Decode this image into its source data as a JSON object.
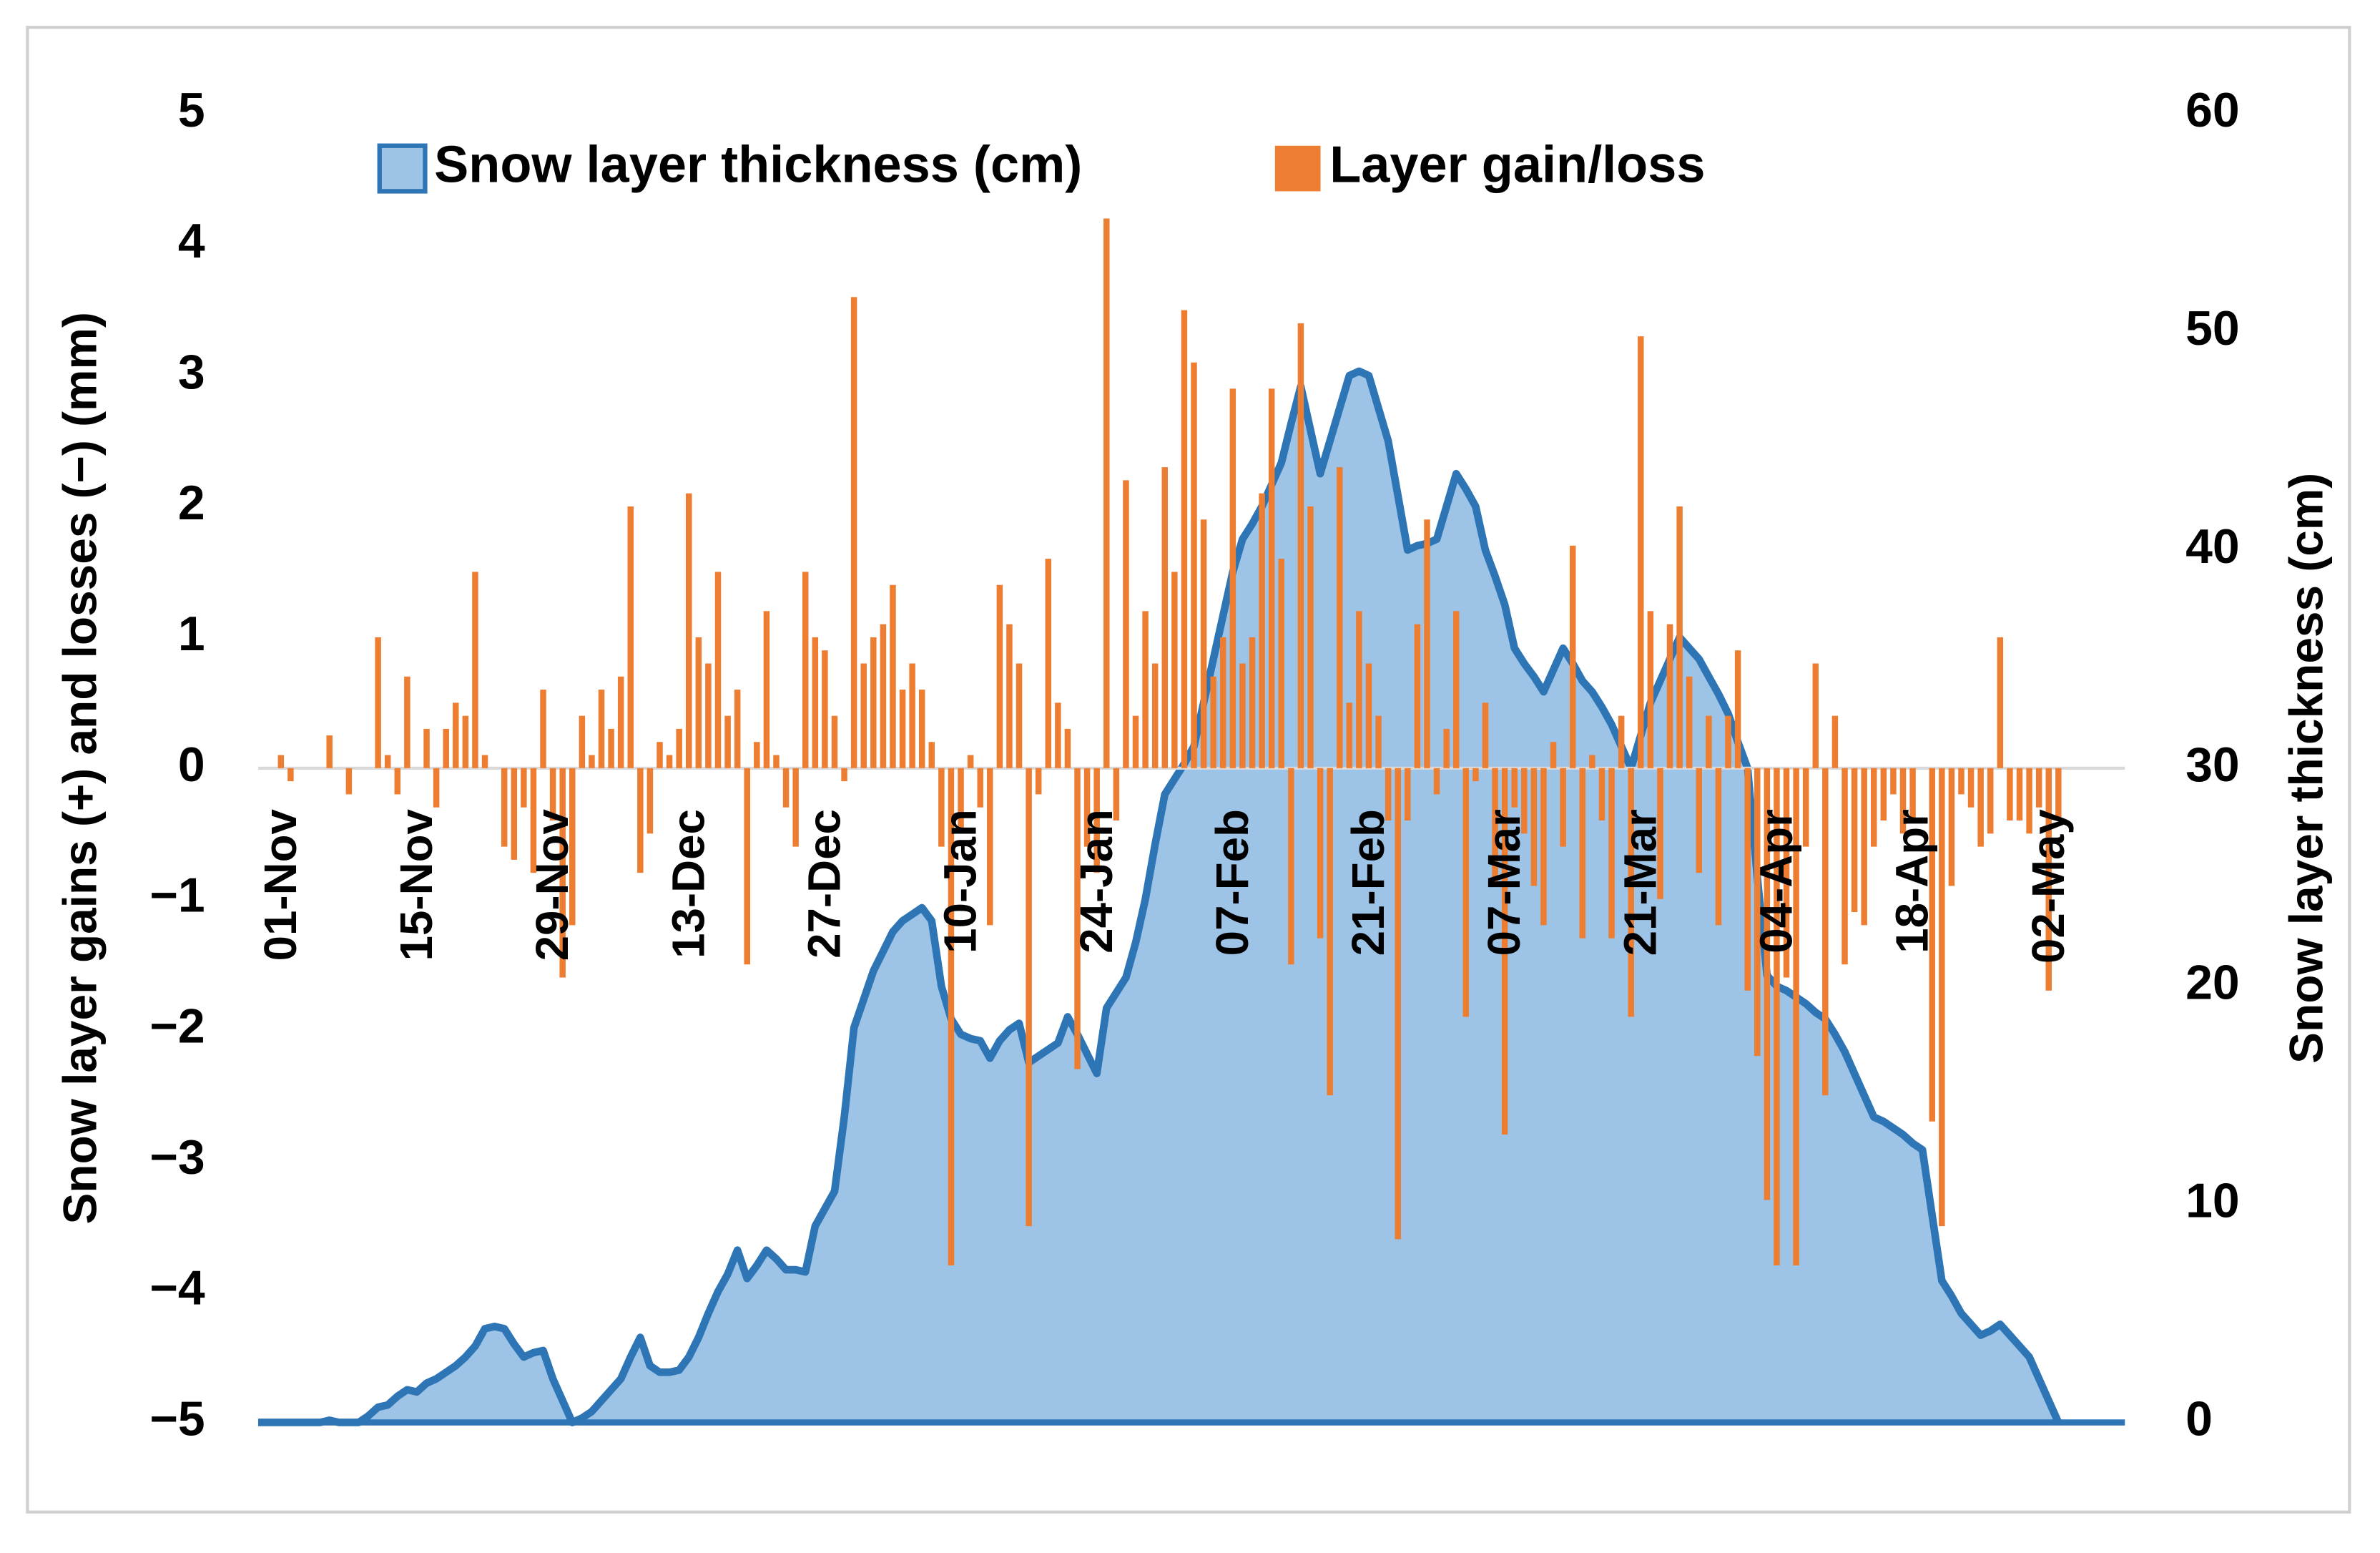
{
  "chart_data": {
    "type": "combo",
    "y_label": "Snow layer gains (+) and losses (−) (mm)",
    "y2_label": "Snow layer thickness (cm)",
    "legend": "top",
    "ylim": [
      -5,
      5
    ],
    "yticks": [
      {
        "value": -5,
        "label": "−5"
      },
      {
        "value": -4,
        "label": "−4"
      },
      {
        "value": -3,
        "label": "−3"
      },
      {
        "value": -2,
        "label": "−2"
      },
      {
        "value": -1,
        "label": "−1"
      },
      0,
      1,
      2,
      3,
      4,
      5
    ],
    "y2lim": [
      0,
      60
    ],
    "y2ticks": [
      0,
      10,
      20,
      30,
      40,
      50,
      60
    ],
    "categories": [
      "01-Nov",
      null,
      null,
      null,
      null,
      null,
      null,
      null,
      null,
      null,
      null,
      null,
      null,
      null,
      "15-Nov",
      null,
      null,
      null,
      null,
      null,
      null,
      null,
      null,
      null,
      null,
      null,
      null,
      null,
      "29-Nov",
      null,
      null,
      null,
      null,
      null,
      null,
      null,
      null,
      null,
      null,
      null,
      null,
      null,
      "13-Dec",
      null,
      null,
      null,
      null,
      null,
      null,
      null,
      null,
      null,
      null,
      null,
      null,
      null,
      "27-Dec",
      null,
      null,
      null,
      null,
      null,
      null,
      null,
      null,
      null,
      null,
      null,
      null,
      null,
      "10-Jan",
      null,
      null,
      null,
      null,
      null,
      null,
      null,
      null,
      null,
      null,
      null,
      null,
      null,
      "24-Jan",
      null,
      null,
      null,
      null,
      null,
      null,
      null,
      null,
      null,
      null,
      null,
      null,
      null,
      "07-Feb",
      null,
      null,
      null,
      null,
      null,
      null,
      null,
      null,
      null,
      null,
      null,
      null,
      null,
      "21-Feb",
      null,
      null,
      null,
      null,
      null,
      null,
      null,
      null,
      null,
      null,
      null,
      null,
      null,
      "07-Mar",
      null,
      null,
      null,
      null,
      null,
      null,
      null,
      null,
      null,
      null,
      null,
      null,
      null,
      "21-Mar",
      null,
      null,
      null,
      null,
      null,
      null,
      null,
      null,
      null,
      null,
      null,
      null,
      null,
      "04-Apr",
      null,
      null,
      null,
      null,
      null,
      null,
      null,
      null,
      null,
      null,
      null,
      null,
      null,
      "18-Apr",
      null,
      null,
      null,
      null,
      null,
      null,
      null,
      null,
      null,
      null,
      null,
      null,
      null,
      "02-May",
      null
    ],
    "series": [
      {
        "name": "Snow layer thickness (cm)",
        "type": "area",
        "axis": "y2",
        "color": "#2e75b6",
        "fill": "#9dc3e6",
        "values": [
          0,
          0,
          0,
          0,
          0,
          0.1,
          0,
          0,
          0,
          0.3,
          0.7,
          0.8,
          1.2,
          1.5,
          1.4,
          1.8,
          2.0,
          2.3,
          2.6,
          3.0,
          3.5,
          4.3,
          4.4,
          4.3,
          3.6,
          3.0,
          3.2,
          3.3,
          2.0,
          1.0,
          0,
          0.2,
          0.5,
          1.0,
          1.5,
          2.0,
          3.0,
          3.9,
          2.6,
          2.3,
          2.3,
          2.4,
          3.0,
          3.9,
          5.0,
          6.0,
          6.8,
          7.9,
          6.6,
          7.2,
          7.9,
          7.5,
          7.0,
          7.0,
          6.9,
          9.0,
          9.8,
          10.6,
          14.0,
          18.1,
          19.4,
          20.7,
          21.6,
          22.5,
          23.0,
          23.3,
          23.6,
          23.0,
          20.0,
          18.5,
          17.8,
          17.6,
          17.5,
          16.7,
          17.5,
          18.0,
          18.3,
          16.5,
          16.8,
          17.1,
          17.4,
          18.6,
          17.8,
          16.9,
          16.0,
          19.0,
          19.7,
          20.4,
          22.0,
          24.0,
          26.5,
          28.8,
          29.5,
          30.2,
          31.0,
          33.0,
          35.0,
          37.0,
          39.0,
          40.5,
          41.2,
          42.0,
          43.0,
          44.0,
          45.8,
          47.5,
          45.5,
          43.5,
          45.0,
          46.5,
          48.0,
          48.2,
          48.0,
          46.5,
          45.0,
          42.5,
          40.0,
          40.2,
          40.3,
          40.5,
          42.0,
          43.5,
          42.8,
          42.0,
          40.0,
          38.8,
          37.5,
          35.5,
          34.8,
          34.2,
          33.5,
          34.5,
          35.5,
          34.8,
          34.0,
          33.5,
          32.8,
          32.0,
          31.0,
          30.0,
          31.5,
          33.0,
          34.0,
          35.0,
          36.0,
          35.5,
          35.0,
          34.2,
          33.4,
          32.5,
          31.2,
          30.0,
          25.0,
          20.5,
          20.0,
          19.8,
          19.5,
          19.2,
          18.8,
          18.5,
          17.8,
          17.0,
          16.0,
          15.0,
          14.0,
          13.8,
          13.5,
          13.2,
          12.8,
          12.5,
          9.5,
          6.5,
          5.8,
          5.0,
          4.5,
          4.0,
          4.2,
          4.5,
          4.0,
          3.5,
          3.0,
          2.0,
          1.0,
          0
        ]
      },
      {
        "name": "Layer gain/loss",
        "type": "bar",
        "color": "#ed7d31",
        "values": [
          0.1,
          -0.1,
          0,
          0,
          0,
          0.25,
          0,
          -0.2,
          0,
          0,
          1.0,
          0.1,
          -0.2,
          0.7,
          0,
          0.3,
          -0.3,
          0.3,
          0.5,
          0.4,
          1.5,
          0.1,
          0,
          -0.6,
          -0.7,
          -0.3,
          -0.8,
          0.6,
          -0.4,
          -1.6,
          -1.2,
          0.4,
          0.1,
          0.6,
          0.3,
          0.7,
          2.0,
          -0.8,
          -0.5,
          0.2,
          0.1,
          0.3,
          2.1,
          1.0,
          0.8,
          1.5,
          0.4,
          0.6,
          -1.5,
          0.2,
          1.2,
          0.1,
          -0.3,
          -0.6,
          1.5,
          1.0,
          0.9,
          0.4,
          -0.1,
          3.6,
          0.8,
          1.0,
          1.1,
          1.4,
          0.6,
          0.8,
          0.6,
          0.2,
          -0.6,
          -3.8,
          -0.5,
          0.1,
          -0.3,
          -1.2,
          1.4,
          1.1,
          0.8,
          -3.5,
          -0.2,
          1.6,
          0.5,
          0.3,
          -2.3,
          -0.6,
          -0.8,
          4.2,
          -0.4,
          2.2,
          0.4,
          1.2,
          0.8,
          2.3,
          1.5,
          3.5,
          3.1,
          1.9,
          0.7,
          1.0,
          2.9,
          0.8,
          1.0,
          2.1,
          2.9,
          1.6,
          -1.5,
          3.4,
          2.0,
          -1.3,
          -2.5,
          2.3,
          0.5,
          1.2,
          0.8,
          0.4,
          -0.4,
          -3.6,
          -0.4,
          1.1,
          1.9,
          -0.2,
          0.3,
          1.2,
          -1.9,
          -0.1,
          0.5,
          -0.9,
          -2.8,
          -0.3,
          -0.5,
          -0.9,
          -1.2,
          0.2,
          -0.6,
          1.7,
          -1.3,
          0.1,
          -0.4,
          -1.3,
          0.4,
          -1.9,
          3.3,
          1.2,
          -1.0,
          1.1,
          2.0,
          0.7,
          -0.8,
          0.4,
          -1.2,
          0.4,
          0.9,
          -1.7,
          -2.2,
          -3.3,
          -3.8,
          -1.6,
          -3.8,
          -0.6,
          0.8,
          -2.5,
          0.4,
          -1.5,
          -1.1,
          -1.2,
          -0.6,
          -0.4,
          -0.2,
          -0.5,
          -0.4,
          0.0,
          -2.7,
          -3.5,
          -0.9,
          -0.2,
          -0.3,
          -0.6,
          -0.5,
          1.0,
          -0.4,
          -0.4,
          -0.5,
          -0.3,
          -1.7,
          -0.4
        ]
      }
    ]
  }
}
